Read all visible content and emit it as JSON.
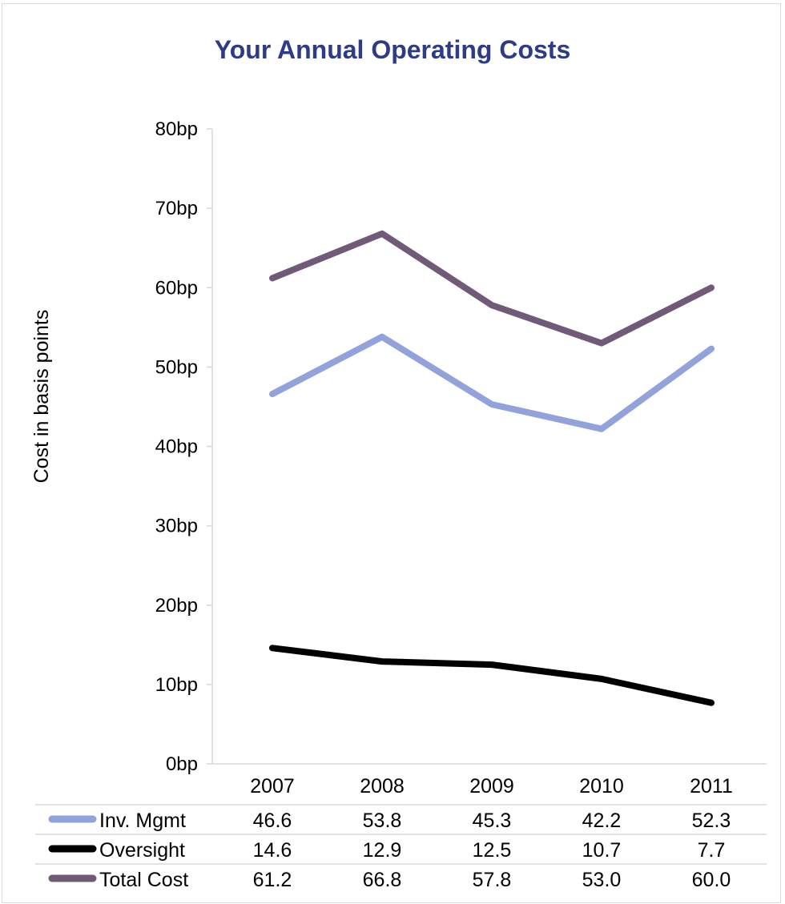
{
  "chart_data": {
    "type": "line",
    "title": "Your Annual Operating Costs",
    "ylabel": "Cost in basis points",
    "xlabel": "",
    "categories": [
      "2007",
      "2008",
      "2009",
      "2010",
      "2011"
    ],
    "ylim": [
      0,
      80
    ],
    "yticks": [
      "0bp",
      "10bp",
      "20bp",
      "30bp",
      "40bp",
      "50bp",
      "60bp",
      "70bp",
      "80bp"
    ],
    "grid": false,
    "legend": "data-table",
    "series": [
      {
        "name": "Inv. Mgmt",
        "color": "#92a3dc",
        "values": [
          46.6,
          53.8,
          45.3,
          42.2,
          52.3
        ],
        "labels": [
          "46.6",
          "53.8",
          "45.3",
          "42.2",
          "52.3"
        ]
      },
      {
        "name": "Oversight",
        "color": "#000000",
        "values": [
          14.6,
          12.9,
          12.5,
          10.7,
          7.7
        ],
        "labels": [
          "14.6",
          "12.9",
          "12.5",
          "10.7",
          "7.7"
        ]
      },
      {
        "name": "Total Cost",
        "color": "#715a77",
        "values": [
          61.2,
          66.8,
          57.8,
          53.0,
          60.0
        ],
        "labels": [
          "61.2",
          "66.8",
          "57.8",
          "53.0",
          "60.0"
        ]
      }
    ]
  }
}
